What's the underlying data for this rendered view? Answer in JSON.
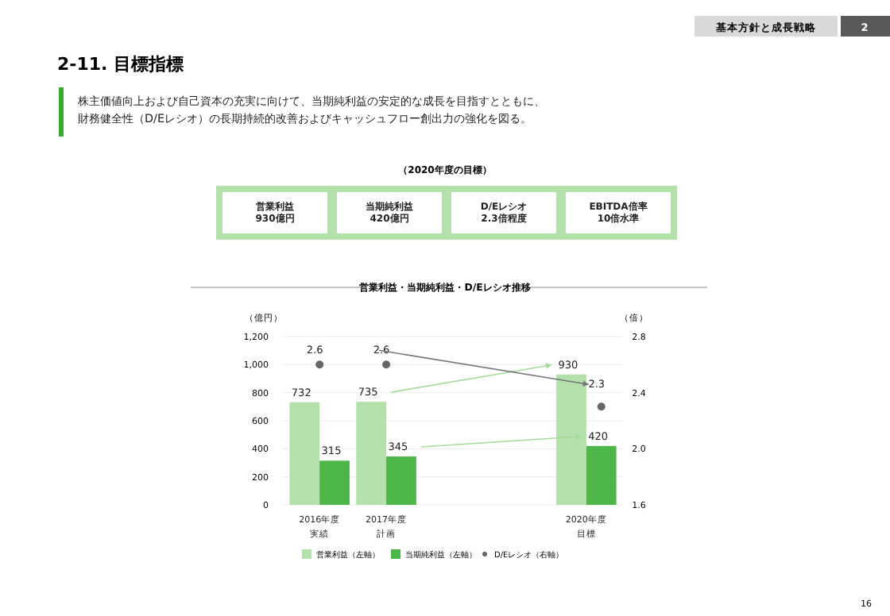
{
  "chart_data": {
    "type": "bar",
    "title": "営業利益・当期純利益・D/Eレシオ推移",
    "subtitle": "株主価値向上および自己資本の充実に向けて、当期純利益の安定的な成長を目指すとともに、財務健全性（D/Eレシオ）の長期持続的改善およびキャッシュフロー創出力の強化を図る。",
    "annotations": [
      "2-11. 目標指標",
      "基本方針と成長戦略",
      "2",
      "（2020年度の目標）",
      "営業利益\n930億円",
      "当期純利益\n420億円",
      "D/Eレシオ\n2.3倍程度",
      "EBITDA倍率\n10倍水準",
      "16"
    ],
    "categories": [
      "2016年度実績",
      "2017年度計画",
      null,
      null,
      "2020年度目標"
    ],
    "ylabel": "（億円）",
    "y2label": "（倍）",
    "series": [
      {
        "name": "営業利益（左軸）",
        "color": "#b3e0ab",
        "values": [
          732,
          735,
          null,
          null,
          930
        ]
      },
      {
        "name": "当期純利益（左軸）",
        "color": "#4cb648",
        "values": [
          315,
          345,
          null,
          null,
          420
        ]
      },
      {
        "name": "D/Eレシオ（右軸）",
        "type": "scatter",
        "axis": "y2",
        "color": "#666666",
        "values": [
          2.6,
          2.6,
          null,
          null,
          2.3
        ]
      }
    ],
    "ylim": [
      0,
      1200
    ],
    "yticks": [
      0,
      200,
      400,
      600,
      800,
      {
        "value": 1000,
        "label": "1,000"
      },
      {
        "value": 1200,
        "label": "1,200"
      }
    ],
    "y2lim": [
      1.6,
      2.8
    ],
    "y2ticks": [
      1.6,
      {
        "value": 2.0,
        "label": "2.0"
      },
      2.4,
      2.8
    ],
    "grid": "y",
    "legend": "bottom",
    "marker": "circle",
    "data_labels": true
  }
}
